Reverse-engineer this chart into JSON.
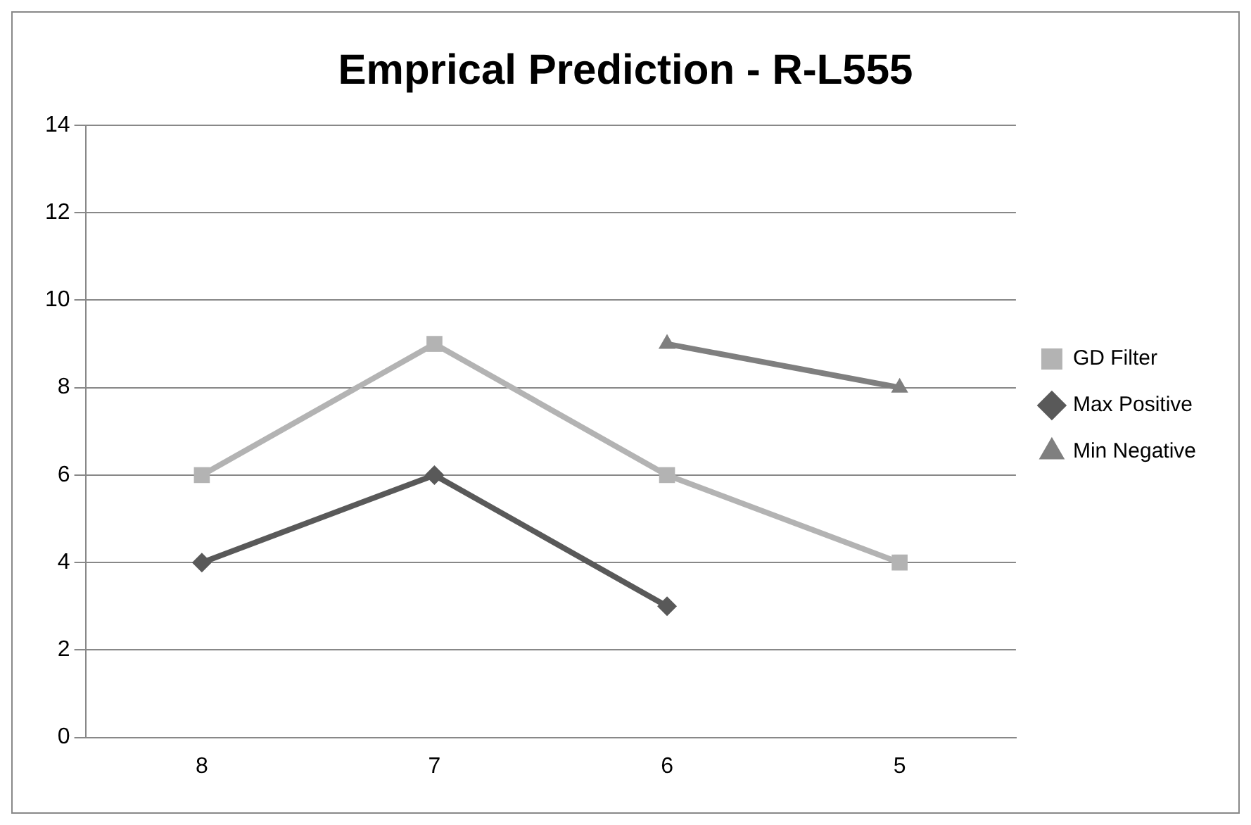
{
  "chart_data": {
    "type": "line",
    "title": "Emprical Prediction - R-L555",
    "categories": [
      "8",
      "7",
      "6",
      "5"
    ],
    "series": [
      {
        "name": "GD Filter",
        "color": "#b3b3b3",
        "marker": "square",
        "values": [
          6,
          9,
          6,
          4
        ]
      },
      {
        "name": "Max Positive",
        "color": "#595959",
        "marker": "diamond",
        "values": [
          4,
          6,
          3,
          null
        ]
      },
      {
        "name": "Min Negative",
        "color": "#7f7f7f",
        "marker": "triangle",
        "values": [
          null,
          null,
          9,
          8
        ]
      }
    ],
    "ylim": [
      0,
      14
    ],
    "yticks": [
      0,
      2,
      4,
      6,
      8,
      10,
      12,
      14
    ],
    "grid": "y",
    "legend": "right",
    "line_style": "solid"
  }
}
